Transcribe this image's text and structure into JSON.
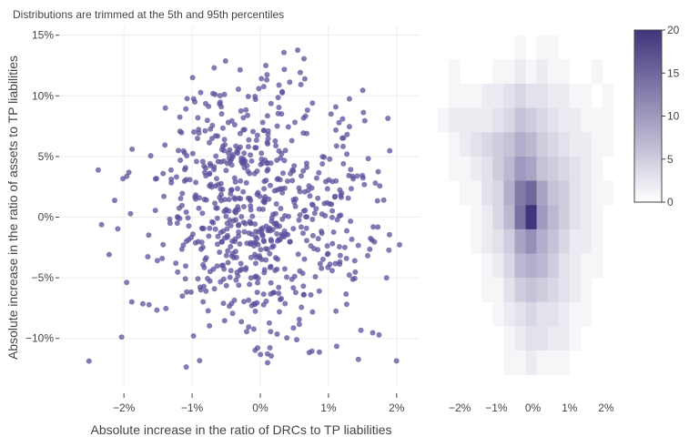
{
  "title": "Distributions are trimmed at the 5th and 95th percentiles",
  "chart_data": [
    {
      "type": "scatter",
      "name": "scatter",
      "xlabel": "Absolute increase in the ratio of DRCs to TP liabilities",
      "ylabel": "Absolute increase in the ratio of assets to TP liabilities",
      "xlim": [
        -2.95,
        2.35
      ],
      "ylim": [
        -14.0,
        15.8
      ],
      "xticks": [
        -2,
        -1,
        0,
        1,
        2
      ],
      "xtick_labels": [
        "−2%",
        "−1%",
        "0%",
        "1%",
        "2%"
      ],
      "yticks": [
        -10,
        -5,
        0,
        5,
        10,
        15
      ],
      "ytick_labels": [
        "−10%",
        "−5%",
        "0%",
        "5%",
        "10%",
        "15%"
      ],
      "marker_color": "#5b4f9b",
      "point_count": 720,
      "points": []
    },
    {
      "type": "heatmap",
      "name": "density-heatmap",
      "x_bin_centers": [
        -2.45,
        -2.15,
        -1.85,
        -1.55,
        -1.25,
        -0.95,
        -0.65,
        -0.35,
        -0.05,
        0.25,
        0.55,
        0.85,
        1.15,
        1.45,
        1.75,
        2.05
      ],
      "y_bin_centers": [
        14,
        12,
        10,
        8,
        6,
        4,
        2,
        0,
        -2,
        -4,
        -6,
        -8,
        -10,
        -12
      ],
      "xlim": [
        -2.95,
        2.35
      ],
      "ylim": [
        -14.0,
        15.8
      ],
      "xticks": [
        -2,
        -1,
        0,
        1,
        2
      ],
      "xtick_labels": [
        "−2%",
        "−1%",
        "0%",
        "1%",
        "2%"
      ],
      "z": [
        [
          0,
          0,
          0,
          0,
          0,
          0,
          0,
          1,
          0,
          1,
          1,
          0,
          0,
          0,
          0,
          0
        ],
        [
          0,
          1,
          0,
          0,
          0,
          1,
          1,
          2,
          1,
          2,
          1,
          1,
          0,
          0,
          1,
          0
        ],
        [
          0,
          1,
          1,
          1,
          2,
          2,
          3,
          4,
          3,
          3,
          2,
          2,
          1,
          1,
          0,
          1
        ],
        [
          1,
          2,
          2,
          2,
          2,
          3,
          4,
          6,
          5,
          4,
          3,
          2,
          2,
          1,
          1,
          1
        ],
        [
          0,
          1,
          2,
          3,
          4,
          5,
          6,
          8,
          7,
          5,
          4,
          3,
          2,
          2,
          1,
          1
        ],
        [
          0,
          1,
          1,
          2,
          3,
          5,
          7,
          10,
          9,
          6,
          5,
          4,
          3,
          2,
          1,
          0
        ],
        [
          0,
          0,
          1,
          1,
          3,
          4,
          8,
          13,
          15,
          9,
          6,
          5,
          3,
          2,
          1,
          1
        ],
        [
          0,
          0,
          0,
          1,
          2,
          4,
          7,
          14,
          20,
          10,
          7,
          5,
          3,
          2,
          1,
          0
        ],
        [
          0,
          0,
          0,
          1,
          2,
          3,
          5,
          9,
          11,
          8,
          6,
          4,
          2,
          2,
          1,
          0
        ],
        [
          0,
          0,
          0,
          0,
          1,
          2,
          4,
          7,
          8,
          7,
          5,
          3,
          2,
          1,
          1,
          0
        ],
        [
          0,
          0,
          0,
          0,
          1,
          1,
          3,
          5,
          6,
          5,
          4,
          3,
          2,
          1,
          0,
          0
        ],
        [
          0,
          0,
          0,
          0,
          0,
          1,
          2,
          3,
          4,
          3,
          3,
          2,
          1,
          1,
          0,
          0
        ],
        [
          0,
          0,
          0,
          0,
          0,
          0,
          1,
          2,
          3,
          3,
          2,
          2,
          1,
          0,
          0,
          0
        ],
        [
          0,
          0,
          0,
          0,
          0,
          0,
          1,
          1,
          2,
          1,
          1,
          1,
          0,
          0,
          0,
          0
        ]
      ],
      "colorscale": [
        "#ffffff",
        "#41347c"
      ],
      "colorbar": {
        "min": 0,
        "max": 20,
        "ticks": [
          0,
          5,
          10,
          15,
          20
        ],
        "tick_labels": [
          "0",
          "5",
          "10",
          "15",
          "20"
        ]
      }
    }
  ]
}
